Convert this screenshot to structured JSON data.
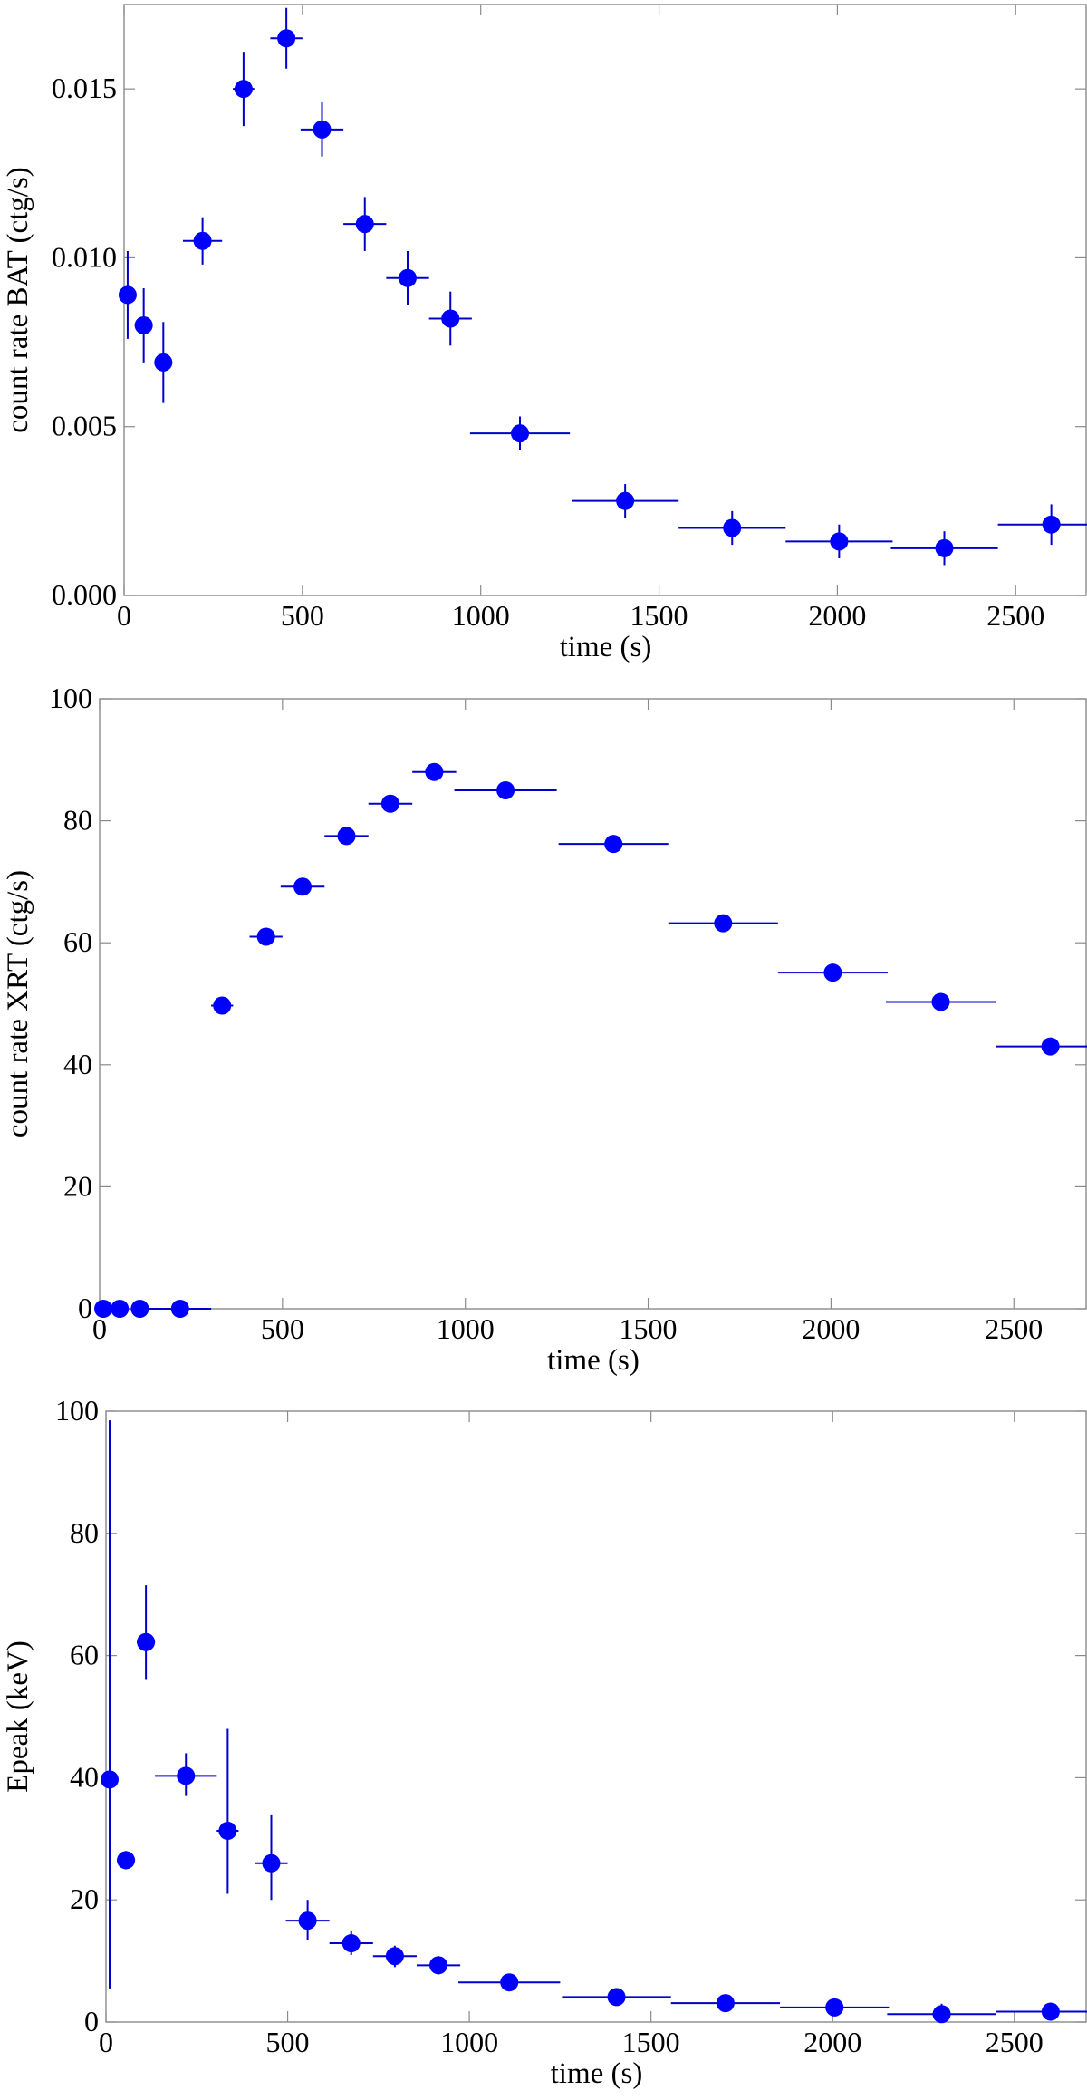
{
  "colors": {
    "point": "#0000ff",
    "errorbar": "#0000cc",
    "frame": "#8a8a8a"
  },
  "chart_data": [
    {
      "type": "scatter",
      "title": "",
      "xlabel": "time (s)",
      "ylabel": "count rate BAT (ctg/s)",
      "xlim": [
        0,
        2700
      ],
      "ylim": [
        0,
        0.0175
      ],
      "xticks": [
        0,
        500,
        1000,
        1500,
        2000,
        2500
      ],
      "xtick_labels": [
        "0",
        "500",
        "1000",
        "1500",
        "2000",
        "2500"
      ],
      "yticks": [
        0,
        0.005,
        0.01,
        0.015
      ],
      "ytick_labels": [
        "0.000",
        "0.005",
        "0.010",
        "0.015"
      ],
      "grid": false,
      "points": [
        {
          "x": 10,
          "xerr": 10,
          "y": 0.0089,
          "yerr": 0.0013
        },
        {
          "x": 55,
          "xerr": 25,
          "y": 0.008,
          "yerr": 0.0011
        },
        {
          "x": 110,
          "xerr": 25,
          "y": 0.0069,
          "yerr": 0.0012
        },
        {
          "x": 220,
          "xerr": 55,
          "y": 0.0105,
          "yerr": 0.0007
        },
        {
          "x": 335,
          "xerr": 30,
          "y": 0.015,
          "yerr": 0.0011
        },
        {
          "x": 455,
          "xerr": 45,
          "y": 0.0165,
          "yerr": 0.0009
        },
        {
          "x": 555,
          "xerr": 60,
          "y": 0.0138,
          "yerr": 0.0008
        },
        {
          "x": 675,
          "xerr": 60,
          "y": 0.011,
          "yerr": 0.0008
        },
        {
          "x": 795,
          "xerr": 60,
          "y": 0.0094,
          "yerr": 0.0008
        },
        {
          "x": 915,
          "xerr": 60,
          "y": 0.0082,
          "yerr": 0.0008
        },
        {
          "x": 1110,
          "xerr": 140,
          "y": 0.0048,
          "yerr": 0.0005
        },
        {
          "x": 1405,
          "xerr": 150,
          "y": 0.0028,
          "yerr": 0.0005
        },
        {
          "x": 1705,
          "xerr": 150,
          "y": 0.002,
          "yerr": 0.0005
        },
        {
          "x": 2005,
          "xerr": 150,
          "y": 0.0016,
          "yerr": 0.0005
        },
        {
          "x": 2300,
          "xerr": 150,
          "y": 0.0014,
          "yerr": 0.0005
        },
        {
          "x": 2600,
          "xerr": 150,
          "y": 0.0021,
          "yerr": 0.0006
        }
      ]
    },
    {
      "type": "scatter",
      "title": "",
      "xlabel": "time (s)",
      "ylabel": "count rate XRT (ctg/s)",
      "xlim": [
        0,
        2700
      ],
      "ylim": [
        0,
        100
      ],
      "xticks": [
        0,
        500,
        1000,
        1500,
        2000,
        2500
      ],
      "xtick_labels": [
        "0",
        "500",
        "1000",
        "1500",
        "2000",
        "2500"
      ],
      "yticks": [
        0,
        20,
        40,
        60,
        80,
        100
      ],
      "ytick_labels": [
        "0",
        "20",
        "40",
        "60",
        "80",
        "100"
      ],
      "grid": false,
      "points": [
        {
          "x": 10,
          "xerr": 10,
          "y": 0,
          "yerr": 0
        },
        {
          "x": 55,
          "xerr": 25,
          "y": 0,
          "yerr": 0
        },
        {
          "x": 110,
          "xerr": 25,
          "y": 0,
          "yerr": 0
        },
        {
          "x": 220,
          "xerr": 85,
          "y": 0,
          "yerr": 0
        },
        {
          "x": 335,
          "xerr": 30,
          "y": 49.7,
          "yerr": 0
        },
        {
          "x": 455,
          "xerr": 45,
          "y": 61.0,
          "yerr": 0
        },
        {
          "x": 555,
          "xerr": 60,
          "y": 69.2,
          "yerr": 0
        },
        {
          "x": 675,
          "xerr": 60,
          "y": 77.5,
          "yerr": 0
        },
        {
          "x": 795,
          "xerr": 60,
          "y": 82.8,
          "yerr": 0
        },
        {
          "x": 915,
          "xerr": 60,
          "y": 88.0,
          "yerr": 0
        },
        {
          "x": 1110,
          "xerr": 140,
          "y": 85.0,
          "yerr": 0
        },
        {
          "x": 1405,
          "xerr": 150,
          "y": 76.2,
          "yerr": 0
        },
        {
          "x": 1705,
          "xerr": 150,
          "y": 63.2,
          "yerr": 0
        },
        {
          "x": 2005,
          "xerr": 150,
          "y": 55.1,
          "yerr": 0
        },
        {
          "x": 2300,
          "xerr": 150,
          "y": 50.3,
          "yerr": 0
        },
        {
          "x": 2600,
          "xerr": 150,
          "y": 43.0,
          "yerr": 0
        }
      ]
    },
    {
      "type": "scatter",
      "title": "",
      "xlabel": "time (s)",
      "ylabel": "Epeak (keV)",
      "xlim": [
        0,
        2700
      ],
      "ylim": [
        0,
        100
      ],
      "xticks": [
        0,
        500,
        1000,
        1500,
        2000,
        2500
      ],
      "xtick_labels": [
        "0",
        "500",
        "1000",
        "1500",
        "2000",
        "2500"
      ],
      "yticks": [
        0,
        20,
        40,
        60,
        80,
        100
      ],
      "ytick_labels": [
        "0",
        "20",
        "40",
        "60",
        "80",
        "100"
      ],
      "grid": false,
      "points": [
        {
          "x": 10,
          "xerr": 10,
          "y": 39.7,
          "ylo": 5.5,
          "yhi": 98.5
        },
        {
          "x": 55,
          "xerr": 25,
          "y": 26.5,
          "ylo": 25.0,
          "yhi": 28.0
        },
        {
          "x": 110,
          "xerr": 25,
          "y": 62.2,
          "ylo": 56.0,
          "yhi": 71.5
        },
        {
          "x": 220,
          "xerr": 85,
          "y": 40.3,
          "ylo": 37.0,
          "yhi": 44.0
        },
        {
          "x": 335,
          "xerr": 30,
          "y": 31.3,
          "ylo": 21.0,
          "yhi": 48.0
        },
        {
          "x": 455,
          "xerr": 45,
          "y": 26.0,
          "ylo": 20.0,
          "yhi": 34.0
        },
        {
          "x": 555,
          "xerr": 60,
          "y": 16.6,
          "ylo": 13.5,
          "yhi": 20.0
        },
        {
          "x": 675,
          "xerr": 60,
          "y": 12.9,
          "ylo": 11.0,
          "yhi": 15.0
        },
        {
          "x": 795,
          "xerr": 60,
          "y": 10.8,
          "ylo": 9.0,
          "yhi": 12.5
        },
        {
          "x": 915,
          "xerr": 60,
          "y": 9.3,
          "ylo": 7.8,
          "yhi": 10.8
        },
        {
          "x": 1110,
          "xerr": 140,
          "y": 6.5,
          "ylo": 5.8,
          "yhi": 7.2
        },
        {
          "x": 1405,
          "xerr": 150,
          "y": 4.1,
          "ylo": 3.4,
          "yhi": 4.8
        },
        {
          "x": 1705,
          "xerr": 150,
          "y": 3.1,
          "ylo": 2.5,
          "yhi": 3.7
        },
        {
          "x": 2005,
          "xerr": 150,
          "y": 2.4,
          "ylo": 1.8,
          "yhi": 3.0
        },
        {
          "x": 2300,
          "xerr": 150,
          "y": 1.3,
          "ylo": 0.3,
          "yhi": 3.0
        },
        {
          "x": 2600,
          "xerr": 150,
          "y": 1.7,
          "ylo": 1.0,
          "yhi": 2.4
        }
      ]
    }
  ]
}
